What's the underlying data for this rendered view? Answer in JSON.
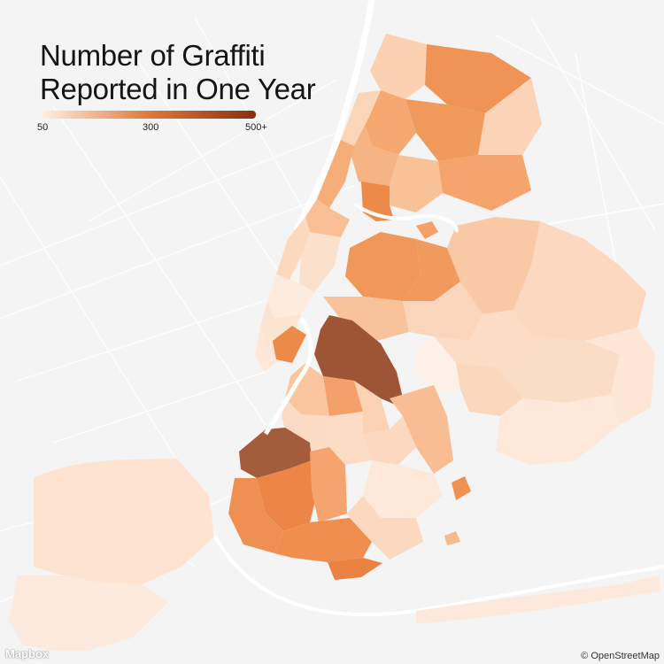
{
  "title_lines": [
    "Number of Graffiti",
    "Reported in One Year"
  ],
  "legend": {
    "min_label": "50",
    "mid_label": "300",
    "max_label": "500+",
    "color_low": "#fff2e8",
    "color_mid": "#e07a3c",
    "color_high": "#8a2f0f"
  },
  "logo_text": "Mapbox",
  "attribution": "© OpenStreetMap",
  "colors": {
    "background": "#f4f4f4",
    "water": "#ffffff",
    "road": "#ffffff"
  },
  "icons": [
    "mapbox-logo-icon"
  ]
}
